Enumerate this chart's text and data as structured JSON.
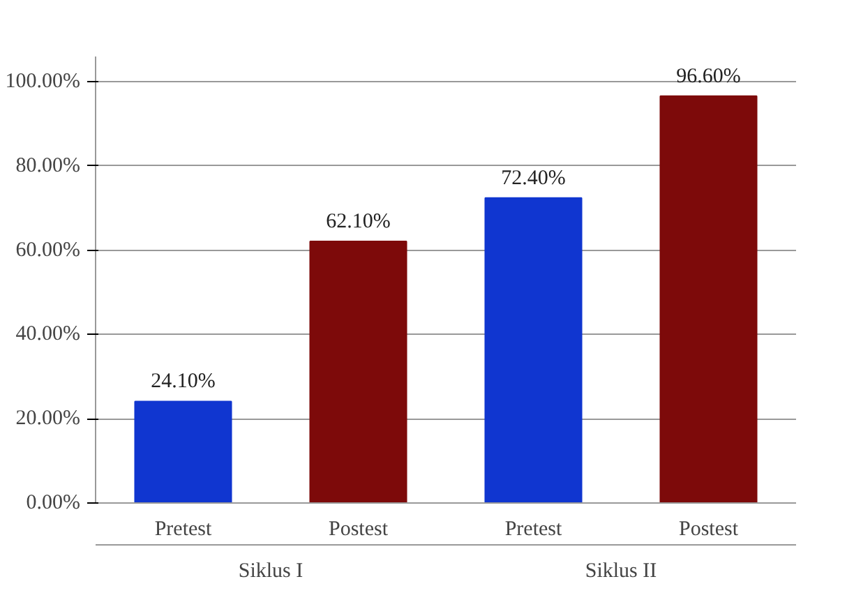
{
  "chart_data": {
    "type": "bar",
    "categories": [
      "Pretest",
      "Postest",
      "Pretest",
      "Postest"
    ],
    "values": [
      24.1,
      62.1,
      72.4,
      96.6
    ],
    "colors": [
      "#1036d0",
      "#7d0a0a",
      "#1036d0",
      "#7d0a0a"
    ],
    "value_labels": [
      "24.10%",
      "62.10%",
      "72.40%",
      "96.60%"
    ],
    "ylim": [
      0,
      106
    ],
    "yticks": [
      {
        "value": 0,
        "label": "0.00%"
      },
      {
        "value": 20,
        "label": "20.00%"
      },
      {
        "value": 40,
        "label": "40.00%"
      },
      {
        "value": 60,
        "label": "60.00%"
      },
      {
        "value": 80,
        "label": "80.00%"
      },
      {
        "value": 100,
        "label": "100.00%"
      }
    ],
    "grid": "y",
    "annotations": [
      "Siklus I",
      "Siklus II"
    ]
  }
}
